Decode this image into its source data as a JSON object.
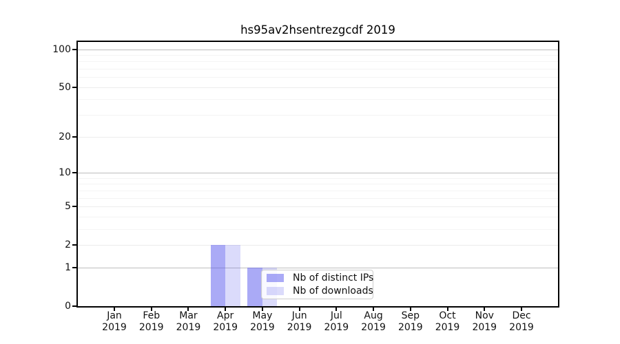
{
  "chart_data": {
    "type": "bar",
    "title": "hs95av2hsentrezgcdf 2019",
    "year": "2019",
    "categories": [
      "Jan",
      "Feb",
      "Mar",
      "Apr",
      "May",
      "Jun",
      "Jul",
      "Aug",
      "Sep",
      "Oct",
      "Nov",
      "Dec"
    ],
    "series": [
      {
        "name": "Nb of distinct IPs",
        "color": "rgba(85,85,238,0.5)",
        "values": [
          0,
          0,
          0,
          2,
          1,
          0,
          0,
          0,
          0,
          0,
          0,
          0
        ]
      },
      {
        "name": "Nb of downloads",
        "color": "rgba(85,85,238,0.21)",
        "values": [
          0,
          0,
          0,
          2,
          1,
          0,
          0,
          0,
          0,
          0,
          0,
          0
        ]
      }
    ],
    "yscale": "symlog-log1p",
    "yticks": [
      0,
      1,
      2,
      5,
      10,
      20,
      50,
      100
    ],
    "minor_yticks": [
      3,
      4,
      6,
      7,
      8,
      9,
      30,
      40,
      60,
      70,
      80,
      90
    ],
    "decade_ticks": [
      1,
      10,
      100
    ],
    "ylim": [
      0,
      114
    ],
    "grid": true,
    "legend_position": "inside-bottom-center",
    "xlabel": "",
    "ylabel": ""
  },
  "colors": {
    "axis": "#000000",
    "grid_decade": "#bdbdbd",
    "grid_mid": "#ececec",
    "grid_minor": "#f4f4f4",
    "legend_border": "#cccccc",
    "text": "#111111"
  }
}
